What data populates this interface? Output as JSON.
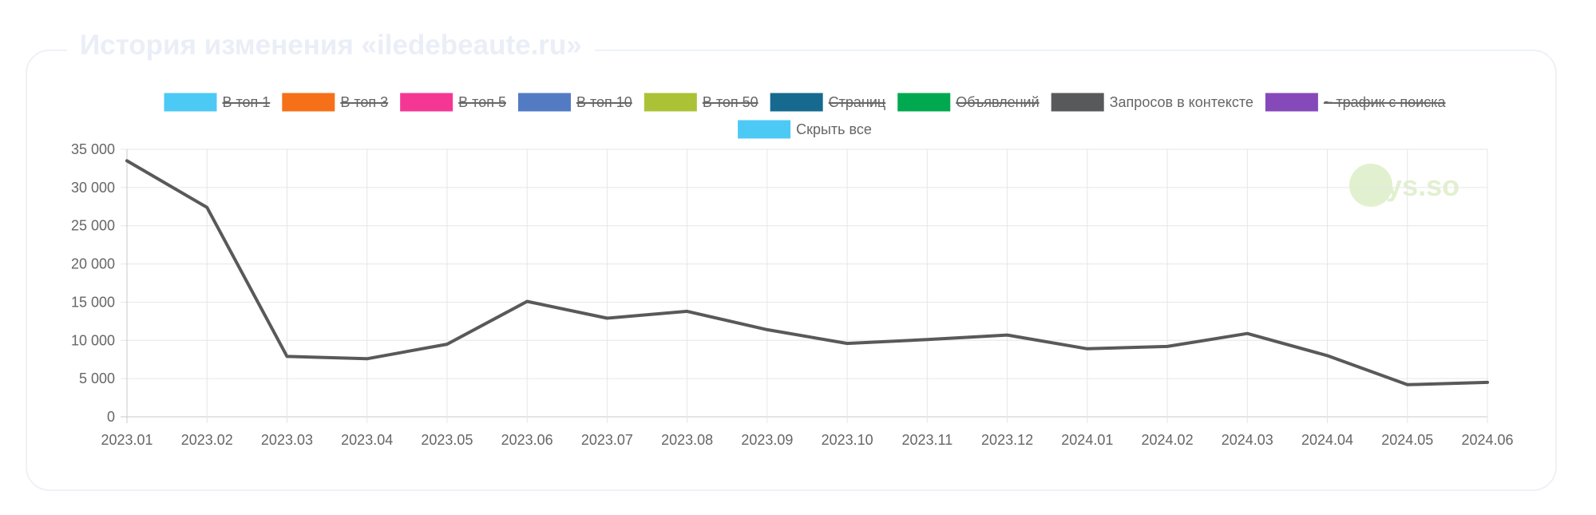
{
  "card": {
    "title": "История изменения «iledebeaute.ru»"
  },
  "watermark": {
    "text": "keys.so",
    "color": "#8cc63f"
  },
  "chart_data": {
    "type": "line",
    "title": "История изменения «iledebeaute.ru»",
    "xlabel": "",
    "ylabel": "",
    "ylim": [
      0,
      35000
    ],
    "y_ticks": [
      0,
      5000,
      10000,
      15000,
      20000,
      25000,
      30000,
      35000
    ],
    "y_tick_labels": [
      "0",
      "5 000",
      "10 000",
      "15 000",
      "20 000",
      "25 000",
      "30 000",
      "35 000"
    ],
    "categories": [
      "2023.01",
      "2023.02",
      "2023.03",
      "2023.04",
      "2023.05",
      "2023.06",
      "2023.07",
      "2023.08",
      "2023.09",
      "2023.10",
      "2023.11",
      "2023.12",
      "2024.01",
      "2024.02",
      "2024.03",
      "2024.04",
      "2024.05",
      "2024.06"
    ],
    "grid": true,
    "legend_position": "top-center",
    "legend": [
      {
        "label": "В топ 1",
        "color": "#4dc9f6",
        "hidden": true
      },
      {
        "label": "В топ 3",
        "color": "#f67019",
        "hidden": true
      },
      {
        "label": "В топ 5",
        "color": "#f53794",
        "hidden": true
      },
      {
        "label": "В топ 10",
        "color": "#537bc4",
        "hidden": true
      },
      {
        "label": "В топ 50",
        "color": "#acc236",
        "hidden": true
      },
      {
        "label": "Страниц",
        "color": "#166a8f",
        "hidden": true
      },
      {
        "label": "Объявлений",
        "color": "#00a950",
        "hidden": true
      },
      {
        "label": "Запросов в контексте",
        "color": "#58595b",
        "hidden": false
      },
      {
        "label": "~ трафик с поиска",
        "color": "#8549ba",
        "hidden": true
      },
      {
        "label": "Скрыть все",
        "color": "#4dc9f6",
        "hidden": false
      }
    ],
    "series": [
      {
        "name": "Запросов в контексте",
        "color": "#58595b",
        "values": [
          33500,
          27400,
          7900,
          7600,
          9500,
          15100,
          12900,
          13800,
          11400,
          9600,
          10100,
          10700,
          8900,
          9200,
          10900,
          8000,
          4200,
          4500
        ]
      }
    ]
  }
}
